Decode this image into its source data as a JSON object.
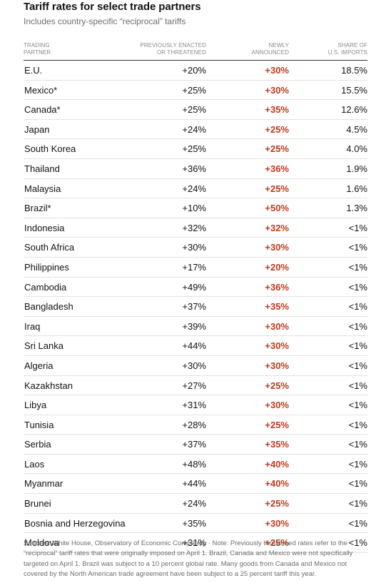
{
  "chart_data": {
    "type": "table",
    "title": "Tariff rates for select trade partners",
    "subtitle": "Includes country-specific “reciprocal” tariffs",
    "columns": {
      "partner": "TRADING PARTNER",
      "previous": "PREVIOUSLY ENACTED OR THREATENED",
      "new": "NEWLY ANNOUNCED",
      "share": "SHARE OF U.S. IMPORTS"
    },
    "rows": [
      {
        "partner": "E.U.",
        "previous": "+20%",
        "new": "+30%",
        "share": "18.5%"
      },
      {
        "partner": "Mexico*",
        "previous": "+25%",
        "new": "+30%",
        "share": "15.5%"
      },
      {
        "partner": "Canada*",
        "previous": "+25%",
        "new": "+35%",
        "share": "12.6%"
      },
      {
        "partner": "Japan",
        "previous": "+24%",
        "new": "+25%",
        "share": "4.5%"
      },
      {
        "partner": "South Korea",
        "previous": "+25%",
        "new": "+25%",
        "share": "4.0%"
      },
      {
        "partner": "Thailand",
        "previous": "+36%",
        "new": "+36%",
        "share": "1.9%"
      },
      {
        "partner": "Malaysia",
        "previous": "+24%",
        "new": "+25%",
        "share": "1.6%"
      },
      {
        "partner": "Brazil*",
        "previous": "+10%",
        "new": "+50%",
        "share": "1.3%"
      },
      {
        "partner": "Indonesia",
        "previous": "+32%",
        "new": "+32%",
        "share": "<1%"
      },
      {
        "partner": "South Africa",
        "previous": "+30%",
        "new": "+30%",
        "share": "<1%"
      },
      {
        "partner": "Philippines",
        "previous": "+17%",
        "new": "+20%",
        "share": "<1%"
      },
      {
        "partner": "Cambodia",
        "previous": "+49%",
        "new": "+36%",
        "share": "<1%"
      },
      {
        "partner": "Bangladesh",
        "previous": "+37%",
        "new": "+35%",
        "share": "<1%"
      },
      {
        "partner": "Iraq",
        "previous": "+39%",
        "new": "+30%",
        "share": "<1%"
      },
      {
        "partner": "Sri Lanka",
        "previous": "+44%",
        "new": "+30%",
        "share": "<1%"
      },
      {
        "partner": "Algeria",
        "previous": "+30%",
        "new": "+30%",
        "share": "<1%"
      },
      {
        "partner": "Kazakhstan",
        "previous": "+27%",
        "new": "+25%",
        "share": "<1%"
      },
      {
        "partner": "Libya",
        "previous": "+31%",
        "new": "+30%",
        "share": "<1%"
      },
      {
        "partner": "Tunisia",
        "previous": "+28%",
        "new": "+25%",
        "share": "<1%"
      },
      {
        "partner": "Serbia",
        "previous": "+37%",
        "new": "+35%",
        "share": "<1%"
      },
      {
        "partner": "Laos",
        "previous": "+48%",
        "new": "+40%",
        "share": "<1%"
      },
      {
        "partner": "Myanmar",
        "previous": "+44%",
        "new": "+40%",
        "share": "<1%"
      },
      {
        "partner": "Brunei",
        "previous": "+24%",
        "new": "+25%",
        "share": "<1%"
      },
      {
        "partner": "Bosnia and Herzegovina",
        "previous": "+35%",
        "new": "+30%",
        "share": "<1%"
      },
      {
        "partner": "Moldova",
        "previous": "+31%",
        "new": "+25%",
        "share": "<1%"
      }
    ]
  },
  "notes": {
    "text": "Sources: White House, Observatory of Economic Complexity · Note: Previously threatened rates refer to the “reciprocal” tariff rates that were originally imposed on April 1. Brazil, Canada and Mexico were not specifically targeted on April 1. Brazil was subject to a 10 percent global rate. Many goods from Canada and Mexico not covered by the North American trade agreement have been subject to a 25 percent tariff this year."
  },
  "colors": {
    "accent_red": "#c0381b",
    "text": "#121212",
    "muted": "#6e6e6e",
    "rule": "#e2e2e2"
  }
}
